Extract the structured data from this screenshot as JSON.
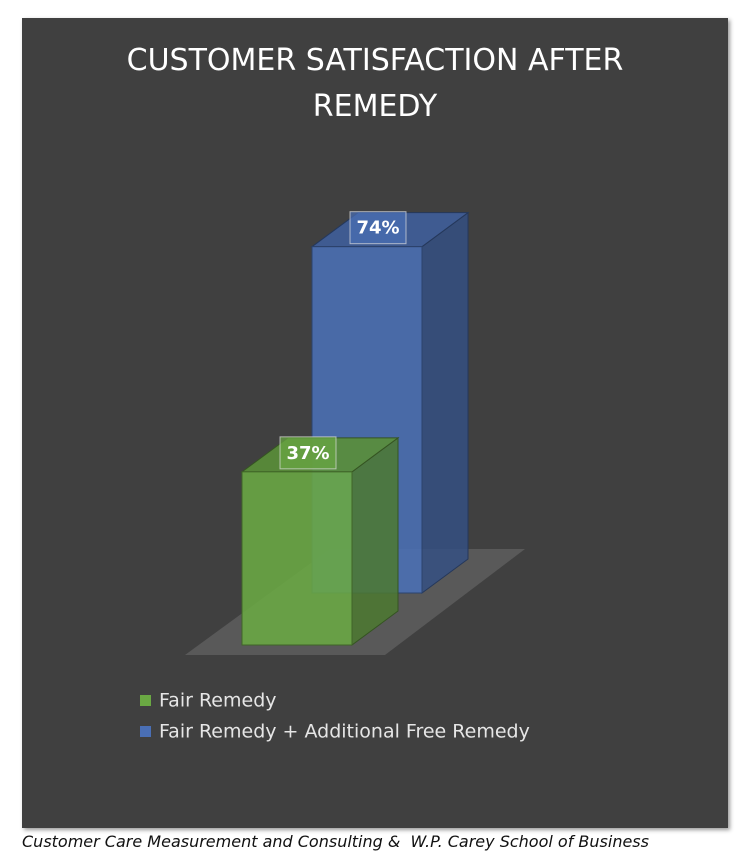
{
  "chart_data": {
    "type": "bar3d",
    "title": "CUSTOMER SATISFACTION AFTER REMEDY",
    "series": [
      {
        "name": "Fair Remedy",
        "color": "#6aa843",
        "values": [
          37
        ],
        "value_labels": [
          "37%"
        ]
      },
      {
        "name": "Fair Remedy + Additional Free Remedy",
        "color": "#4a6fb5",
        "values": [
          74
        ],
        "value_labels": [
          "74%"
        ]
      }
    ],
    "source": "Customer Care Measurement and Consulting &  W.P. Carey School of Business"
  }
}
